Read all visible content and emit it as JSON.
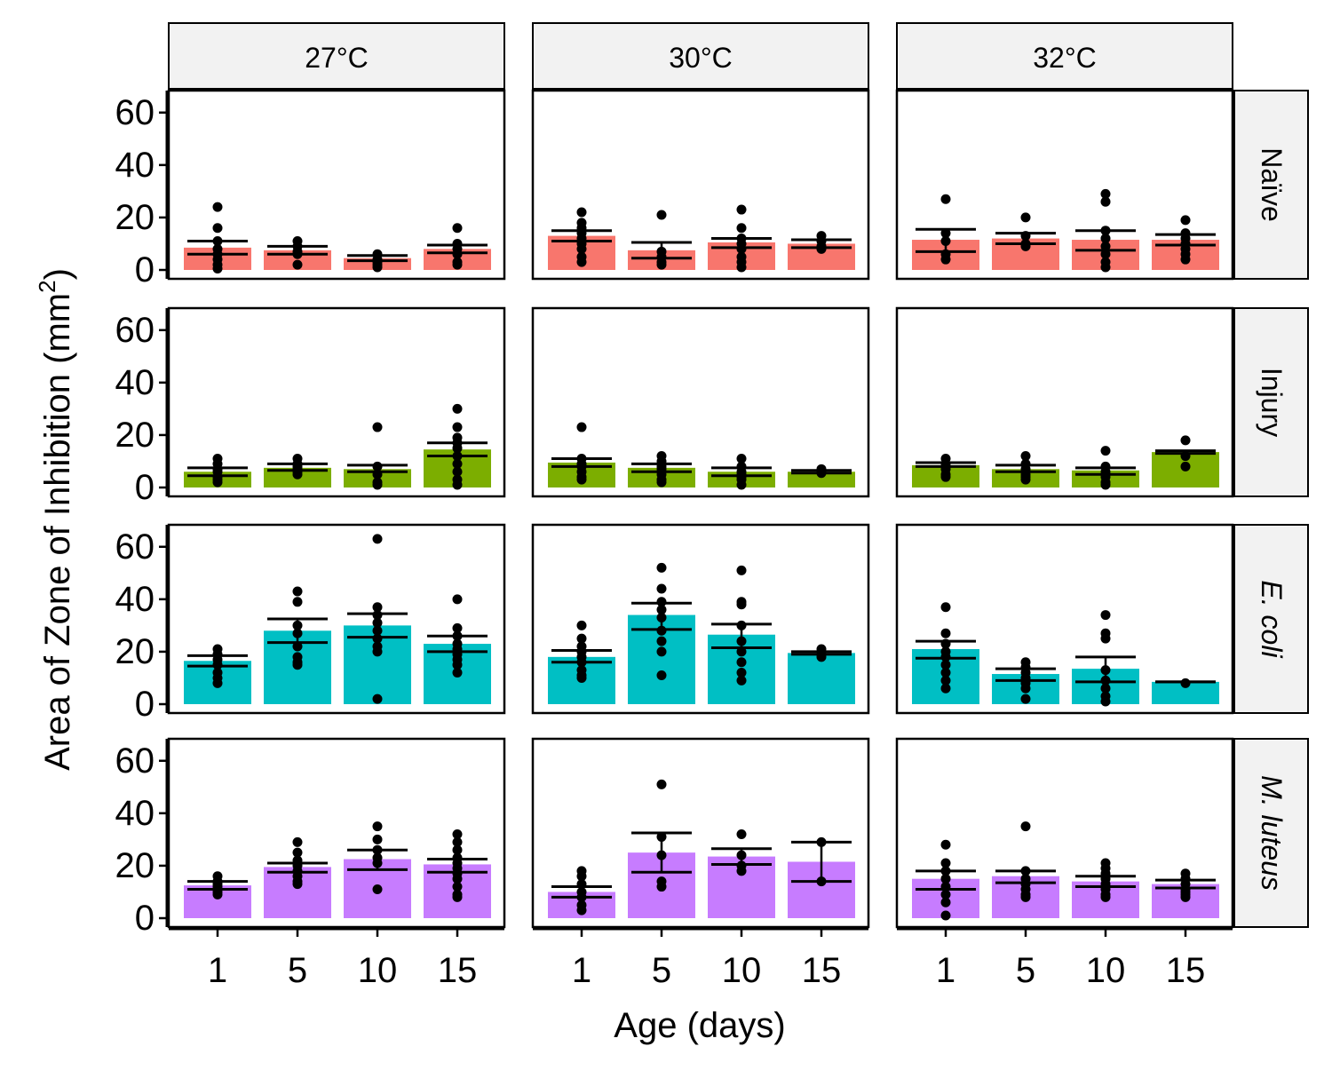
{
  "chart_data": {
    "type": "bar",
    "xlabel": "Age (days)",
    "ylabel_main": "Area of Zone of Inhibition ",
    "ylabel_unit": "mm",
    "ylabel_exp": "2",
    "ylim": [
      0,
      65
    ],
    "yticks": [
      0,
      20,
      40,
      60
    ],
    "categories": [
      "1",
      "5",
      "10",
      "15"
    ],
    "columns": [
      "27°C",
      "30°C",
      "32°C"
    ],
    "rows": [
      {
        "label": "Naïve",
        "italic": false,
        "color": "#F8766D"
      },
      {
        "label": "Injury",
        "italic": false,
        "color": "#7CAE00"
      },
      {
        "label": "E. coli",
        "italic": true,
        "color": "#00BFC4"
      },
      {
        "label": "M. luteus",
        "italic": true,
        "color": "#C77CFF"
      }
    ],
    "panels": [
      [
        {
          "means": [
            8.5,
            7.5,
            4.5,
            8
          ],
          "lower": [
            6,
            6,
            3.5,
            6.5
          ],
          "upper": [
            11,
            9,
            5.5,
            9.5
          ],
          "points": [
            [
              24,
              16,
              11,
              8,
              6,
              4,
              2,
              0.5
            ],
            [
              11,
              9,
              7,
              6,
              2
            ],
            [
              6,
              4,
              3,
              2,
              1
            ],
            [
              16,
              10,
              8,
              6,
              3,
              2
            ]
          ]
        },
        {
          "means": [
            13,
            7.5,
            10.5,
            10
          ],
          "lower": [
            11,
            4.5,
            8.5,
            8.5
          ],
          "upper": [
            15,
            10.5,
            12,
            11.5
          ],
          "points": [
            [
              22,
              18,
              16,
              14,
              12,
              10,
              8,
              5,
              3
            ],
            [
              21,
              7,
              5,
              3,
              2
            ],
            [
              23,
              16,
              12,
              10,
              8,
              5,
              3,
              1
            ],
            [
              13,
              11,
              9,
              8
            ]
          ]
        },
        {
          "means": [
            11.5,
            12,
            11.5,
            11.5
          ],
          "lower": [
            7,
            10,
            7.5,
            9.5
          ],
          "upper": [
            15.5,
            14,
            15,
            13.5
          ],
          "points": [
            [
              27,
              14,
              11,
              6,
              4
            ],
            [
              20,
              13,
              10,
              9
            ],
            [
              29,
              26,
              15,
              12,
              9,
              6,
              3,
              1
            ],
            [
              19,
              14,
              12,
              10,
              8,
              6,
              4
            ]
          ]
        }
      ],
      [
        {
          "means": [
            6,
            7.5,
            7,
            14.5
          ],
          "lower": [
            4.5,
            6.5,
            6,
            12
          ],
          "upper": [
            7.5,
            9,
            8.5,
            17
          ],
          "points": [
            [
              11,
              9,
              7,
              6,
              4,
              3,
              2
            ],
            [
              11,
              9,
              8,
              7,
              6,
              5
            ],
            [
              23,
              8,
              5,
              2,
              1
            ],
            [
              30,
              23,
              19,
              17,
              15,
              12,
              9,
              6,
              3,
              1
            ]
          ]
        },
        {
          "means": [
            9.5,
            7.5,
            6,
            6
          ],
          "lower": [
            8,
            6,
            4.5,
            5.5
          ],
          "upper": [
            11,
            9,
            7.5,
            6.5
          ],
          "points": [
            [
              23,
              11,
              9,
              8,
              6,
              4,
              3
            ],
            [
              12,
              10,
              8,
              7,
              5,
              3,
              2
            ],
            [
              11,
              8,
              6,
              5,
              4,
              3,
              1
            ],
            [
              7,
              6,
              5.5
            ]
          ]
        },
        {
          "means": [
            8.5,
            7,
            6.5,
            13.5
          ],
          "lower": [
            8,
            6,
            5,
            13
          ],
          "upper": [
            9.5,
            8.5,
            7.5,
            14
          ],
          "points": [
            [
              11,
              9,
              8,
              7,
              5,
              4
            ],
            [
              12,
              9,
              7,
              5,
              4,
              3
            ],
            [
              14,
              8,
              6,
              4,
              2,
              1
            ],
            [
              18,
              12,
              8
            ]
          ]
        }
      ],
      [
        {
          "means": [
            16.5,
            28,
            30,
            23
          ],
          "lower": [
            14.5,
            23.5,
            25.5,
            20
          ],
          "upper": [
            18.5,
            32.5,
            34.5,
            26
          ],
          "points": [
            [
              21,
              19,
              17,
              15,
              12,
              10,
              8
            ],
            [
              43,
              39,
              30,
              27,
              22,
              18,
              16,
              15
            ],
            [
              63,
              37,
              34,
              31,
              28,
              25,
              22,
              20,
              2
            ],
            [
              40,
              29,
              26,
              23,
              21,
              19,
              17,
              15,
              12
            ]
          ]
        },
        {
          "means": [
            18,
            34,
            26.5,
            19.5
          ],
          "lower": [
            16,
            28.5,
            21.5,
            19
          ],
          "upper": [
            20.5,
            38.5,
            30.5,
            20
          ],
          "points": [
            [
              30,
              25,
              22,
              20,
              18,
              16,
              13,
              11,
              10
            ],
            [
              52,
              44,
              39,
              36,
              33,
              28,
              24,
              20,
              11
            ],
            [
              51,
              39,
              38,
              30,
              24,
              20,
              16,
              12,
              9
            ],
            [
              21,
              19,
              18
            ]
          ]
        },
        {
          "means": [
            21,
            11.5,
            13.5,
            8.5
          ],
          "lower": [
            17.5,
            9,
            8.5,
            8.5
          ],
          "upper": [
            24,
            13.5,
            18,
            8.5
          ],
          "points": [
            [
              37,
              27,
              23,
              20,
              18,
              15,
              12,
              9,
              6
            ],
            [
              16,
              14,
              12,
              10,
              8,
              6,
              2
            ],
            [
              34,
              27,
              25,
              13,
              9,
              6,
              3,
              1
            ],
            [
              8
            ]
          ]
        }
      ],
      [
        {
          "means": [
            12.5,
            19.5,
            22.5,
            20.5
          ],
          "lower": [
            11,
            17.5,
            18.5,
            17.5
          ],
          "upper": [
            14,
            21,
            26,
            22.5
          ],
          "points": [
            [
              16,
              14,
              13,
              12,
              11,
              10,
              9
            ],
            [
              29,
              25,
              22,
              20,
              18,
              16,
              14,
              13
            ],
            [
              35,
              30,
              26,
              23,
              21,
              11
            ],
            [
              32,
              29,
              26,
              23,
              21,
              19,
              17,
              15,
              12,
              9,
              8
            ]
          ]
        },
        {
          "means": [
            10,
            25,
            23.5,
            21.5
          ],
          "lower": [
            8,
            17.5,
            20.5,
            14
          ],
          "upper": [
            12,
            32.5,
            26.5,
            29
          ],
          "points": [
            [
              18,
              16,
              13,
              10,
              8,
              5,
              3
            ],
            [
              51,
              31,
              24,
              14,
              12
            ],
            [
              32,
              24,
              20,
              18
            ],
            [
              29,
              14
            ]
          ]
        },
        {
          "means": [
            15,
            16,
            14,
            13
          ],
          "lower": [
            11,
            13.5,
            12,
            11.5
          ],
          "upper": [
            18,
            18,
            16,
            14.5
          ],
          "points": [
            [
              28,
              21,
              18,
              15,
              12,
              9,
              6,
              1
            ],
            [
              35,
              18,
              15,
              13,
              11,
              9,
              8
            ],
            [
              21,
              19,
              17,
              15,
              13,
              11,
              9,
              8
            ],
            [
              17,
              15,
              13,
              11,
              10,
              9,
              8
            ]
          ]
        }
      ]
    ]
  }
}
